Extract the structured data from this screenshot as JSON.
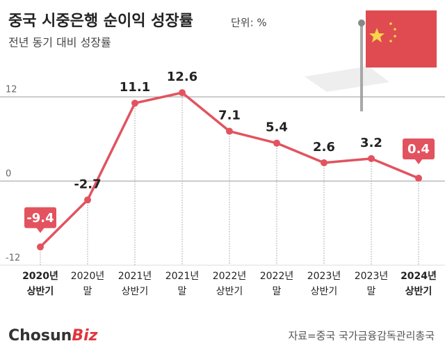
{
  "chart_data": {
    "type": "line",
    "title": "중국 시중은행 순이익 성장률",
    "unit": "단위: %",
    "subtitle": "전년 동기 대비 성장률",
    "categories": [
      [
        "2020년",
        "상반기"
      ],
      [
        "2020년",
        "말"
      ],
      [
        "2021년",
        "상반기"
      ],
      [
        "2021년",
        "말"
      ],
      [
        "2022년",
        "상반기"
      ],
      [
        "2022년",
        "말"
      ],
      [
        "2023년",
        "상반기"
      ],
      [
        "2023년",
        "말"
      ],
      [
        "2024년",
        "상반기"
      ]
    ],
    "values": [
      -9.4,
      -2.7,
      11.1,
      12.6,
      7.1,
      5.4,
      2.6,
      3.2,
      0.4
    ],
    "highlight": [
      0,
      8
    ],
    "color": "#e2535f",
    "ylim": [
      -12,
      14
    ],
    "yticks": [
      12,
      0,
      -12
    ],
    "grid": true,
    "source": "자료=중국 국가금융감독관리총국",
    "logo": [
      "Chosun",
      "Biz"
    ]
  }
}
